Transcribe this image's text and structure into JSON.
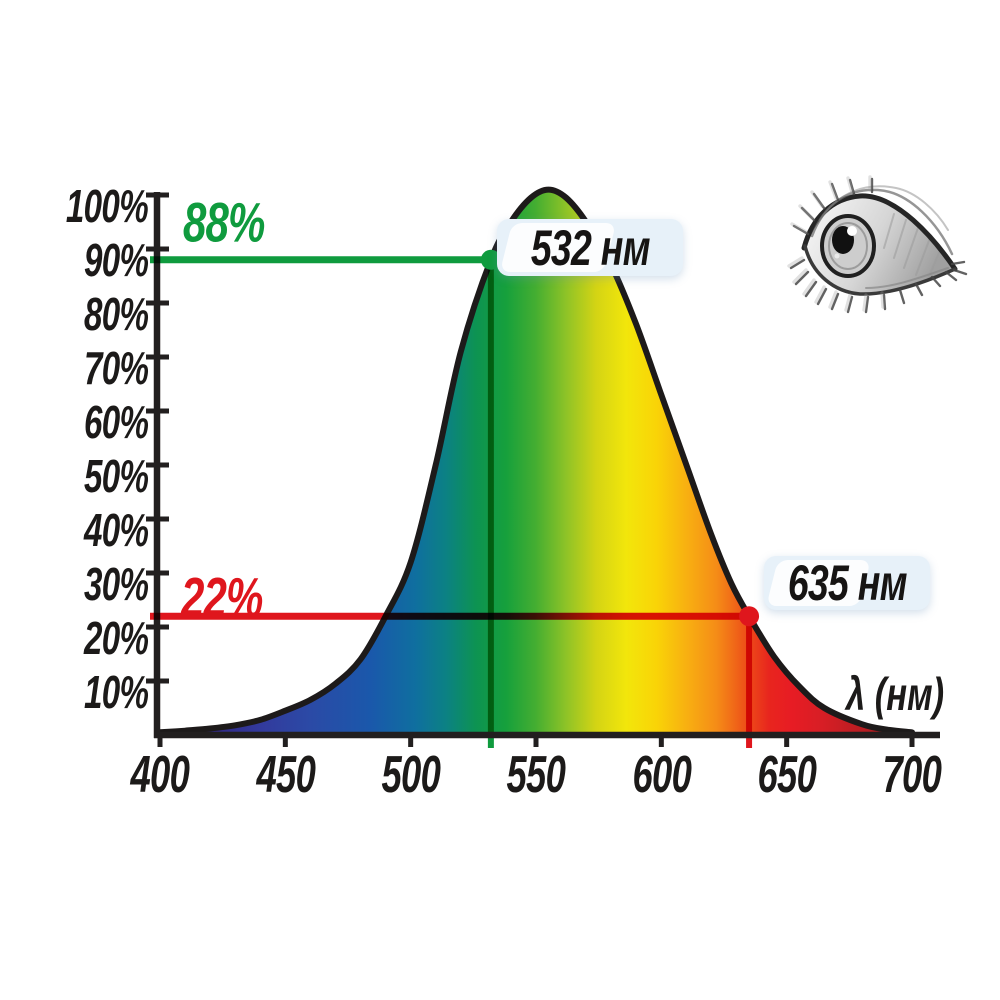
{
  "chart_data": {
    "type": "area",
    "title": "",
    "xlabel": "λ (нм)",
    "ylabel": "",
    "xlim": [
      400,
      700
    ],
    "ylim": [
      0,
      100
    ],
    "grid": false,
    "x_ticks": [
      "400",
      "450",
      "500",
      "550",
      "600",
      "650",
      "700"
    ],
    "y_ticks": [
      "100%",
      "90%",
      "80%",
      "70%",
      "60%",
      "50%",
      "40%",
      "30%",
      "20%",
      "10%"
    ],
    "x": [
      400,
      410,
      420,
      430,
      440,
      450,
      460,
      470,
      480,
      490,
      500,
      510,
      520,
      532,
      540,
      548,
      555,
      562,
      570,
      580,
      590,
      600,
      610,
      620,
      628,
      635,
      645,
      655,
      665,
      680,
      690,
      700
    ],
    "values": [
      0.5,
      0.8,
      1.2,
      1.8,
      2.8,
      4.5,
      6.5,
      9.5,
      14,
      22,
      32,
      50,
      71,
      88,
      95,
      99.5,
      101,
      99.5,
      95,
      87,
      76,
      63,
      50,
      37,
      28,
      22,
      14.5,
      9,
      5,
      2,
      1,
      0.5
    ],
    "markers": [
      {
        "wavelength": 532,
        "percent": 88,
        "wavelength_label": "532 нм",
        "percent_label": "88%",
        "color": "#0f9b3e"
      },
      {
        "wavelength": 635,
        "percent": 22,
        "wavelength_label": "635 нм",
        "percent_label": "22%",
        "color": "#df161d"
      }
    ],
    "axis_color": "#221f1f",
    "label_box_bg": "#e7f1f9",
    "spectrum": [
      {
        "at": 0.0,
        "color": "#2b1b66"
      },
      {
        "at": 0.06,
        "color": "#312781"
      },
      {
        "at": 0.13,
        "color": "#33399c"
      },
      {
        "at": 0.2,
        "color": "#2b4aa6"
      },
      {
        "at": 0.28,
        "color": "#1a58ab"
      },
      {
        "at": 0.34,
        "color": "#0f6f9f"
      },
      {
        "at": 0.38,
        "color": "#0c8184"
      },
      {
        "at": 0.42,
        "color": "#0d9352"
      },
      {
        "at": 0.46,
        "color": "#16a03c"
      },
      {
        "at": 0.5,
        "color": "#45ae31"
      },
      {
        "at": 0.54,
        "color": "#8ec327"
      },
      {
        "at": 0.58,
        "color": "#d4d414"
      },
      {
        "at": 0.62,
        "color": "#f2e60b"
      },
      {
        "at": 0.66,
        "color": "#f9d407"
      },
      {
        "at": 0.7,
        "color": "#f8b011"
      },
      {
        "at": 0.74,
        "color": "#f58c17"
      },
      {
        "at": 0.78,
        "color": "#ed4f18"
      },
      {
        "at": 0.81,
        "color": "#e8251e"
      },
      {
        "at": 0.84,
        "color": "#e71c24"
      },
      {
        "at": 0.88,
        "color": "#d81e25"
      },
      {
        "at": 0.93,
        "color": "#bb1d22"
      },
      {
        "at": 1.0,
        "color": "#9a1a1e"
      }
    ]
  }
}
